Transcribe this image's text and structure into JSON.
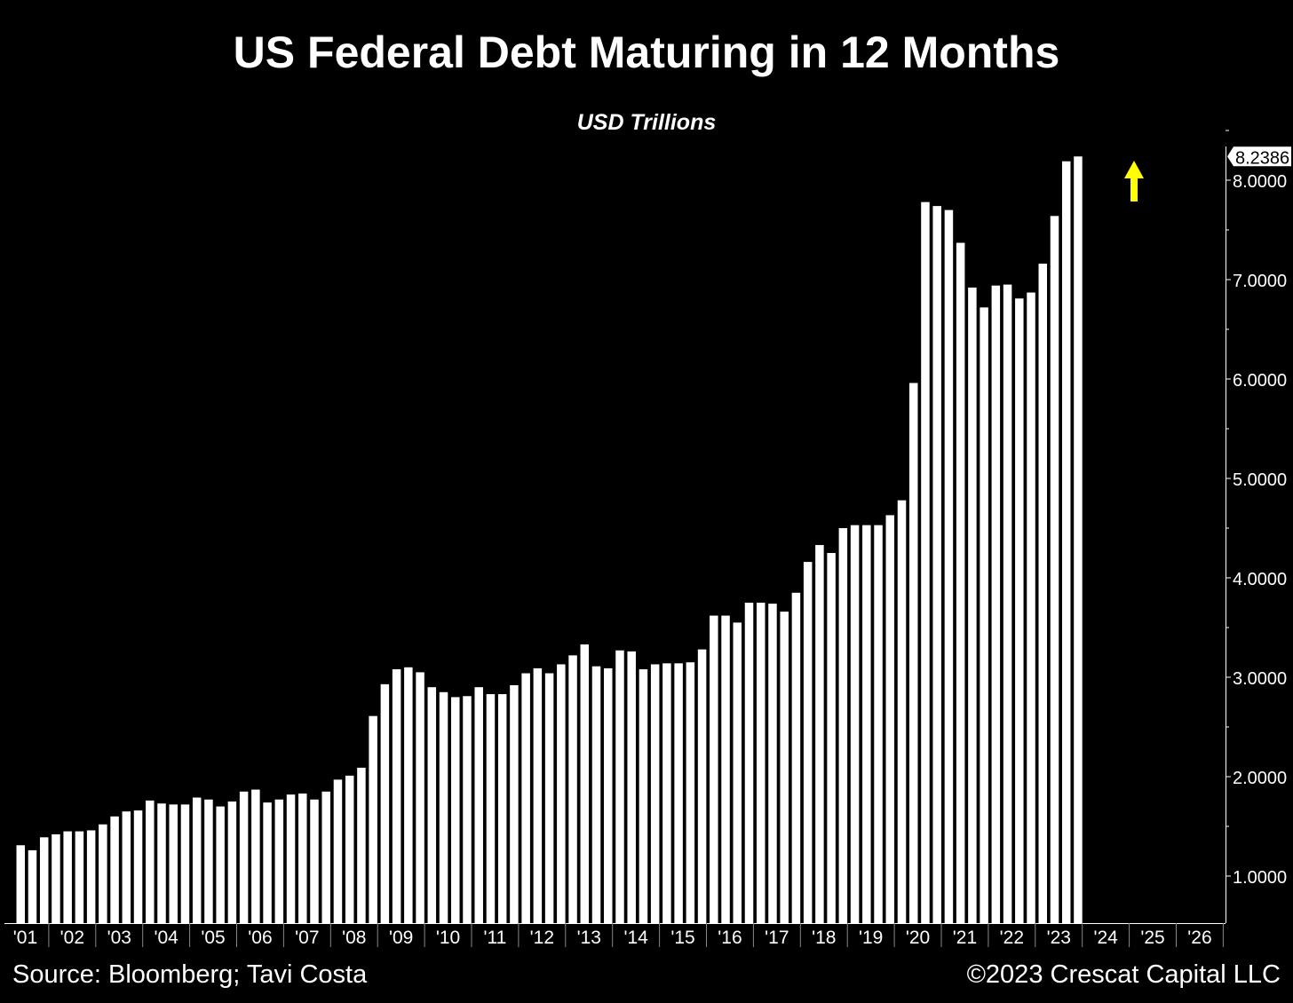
{
  "chart_data": {
    "type": "bar",
    "title": "US Federal Debt Maturing in 12 Months",
    "subtitle": "USD Trillions",
    "frequency": "quarterly",
    "start": "2001 Q1",
    "values": [
      1.31,
      1.26,
      1.39,
      1.42,
      1.45,
      1.45,
      1.46,
      1.52,
      1.6,
      1.65,
      1.66,
      1.76,
      1.73,
      1.72,
      1.72,
      1.79,
      1.77,
      1.7,
      1.75,
      1.85,
      1.87,
      1.74,
      1.77,
      1.82,
      1.83,
      1.77,
      1.85,
      1.97,
      2.01,
      2.09,
      2.61,
      2.93,
      3.08,
      3.1,
      3.05,
      2.9,
      2.85,
      2.8,
      2.81,
      2.9,
      2.83,
      2.83,
      2.92,
      3.04,
      3.09,
      3.04,
      3.13,
      3.22,
      3.33,
      3.11,
      3.09,
      3.27,
      3.26,
      3.08,
      3.13,
      3.14,
      3.14,
      3.15,
      3.28,
      3.62,
      3.62,
      3.55,
      3.75,
      3.75,
      3.74,
      3.66,
      3.85,
      4.16,
      4.33,
      4.25,
      4.5,
      4.53,
      4.53,
      4.53,
      4.63,
      4.78,
      5.96,
      7.78,
      7.74,
      7.7,
      7.37,
      6.92,
      6.72,
      6.94,
      6.95,
      6.81,
      6.87,
      7.16,
      7.64,
      8.19,
      8.2386
    ],
    "last_value_label": "8.2386",
    "x_tick_labels": [
      "'01",
      "'02",
      "'03",
      "'04",
      "'05",
      "'06",
      "'07",
      "'08",
      "'09",
      "'10",
      "'11",
      "'12",
      "'13",
      "'14",
      "'15",
      "'16",
      "'17",
      "'18",
      "'19",
      "'20",
      "'21",
      "'22",
      "'23",
      "'24",
      "'25",
      "'26"
    ],
    "y_ticks": [
      1,
      2,
      3,
      4,
      5,
      6,
      7,
      8
    ],
    "y_tick_labels": [
      "1.0000",
      "2.0000",
      "3.0000",
      "4.0000",
      "5.0000",
      "6.0000",
      "7.0000",
      "8.0000"
    ],
    "ylim": [
      0.53,
      8.35
    ],
    "y_axis_position": "right",
    "grid": false,
    "bar_color": "#ffffff",
    "background": "#000000",
    "annotation": {
      "type": "up-arrow",
      "color": "#ffff00"
    }
  },
  "footer": {
    "source": "Source: Bloomberg; Tavi Costa",
    "copyright": "©2023 Crescat Capital LLC"
  }
}
